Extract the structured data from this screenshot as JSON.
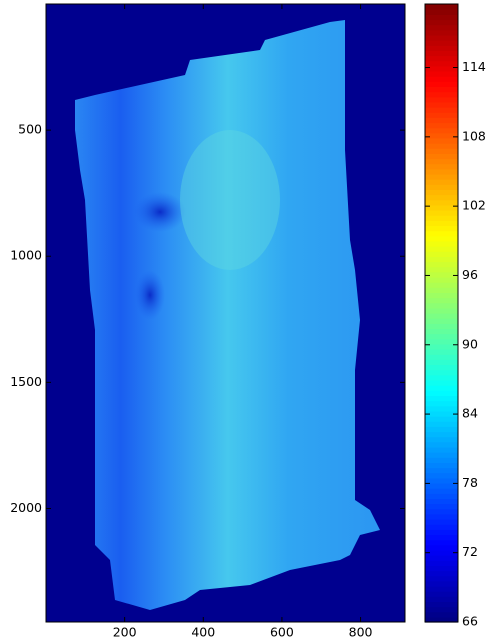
{
  "chart_data": {
    "type": "heatmap",
    "colormap": "jet",
    "xlim": [
      0,
      913
    ],
    "xticks": [
      200,
      400,
      600,
      800
    ],
    "ylim": [
      2450,
      0
    ],
    "yticks": [
      500,
      1000,
      1500,
      2000
    ],
    "clim": [
      66,
      119.5
    ],
    "cticks": [
      66,
      72,
      78,
      84,
      90,
      96,
      102,
      108,
      114
    ]
  }
}
